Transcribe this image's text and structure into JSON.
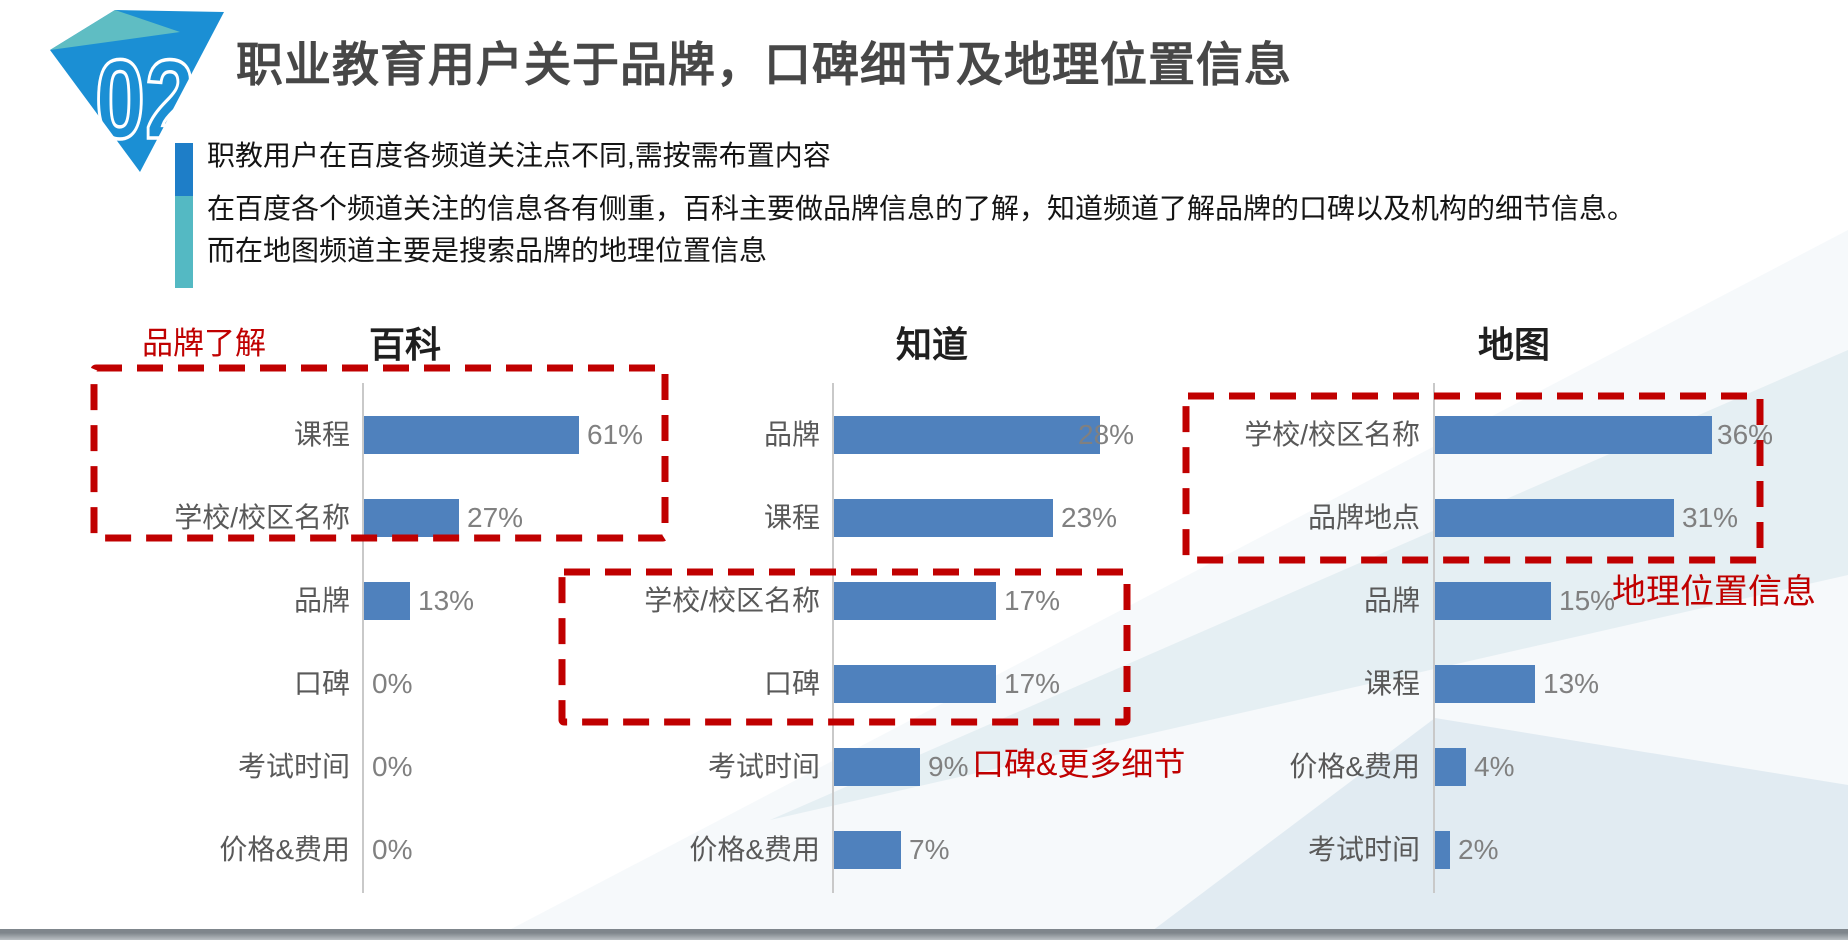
{
  "slide": {
    "badge_number": "02",
    "title": "职业教育用户关于品牌，口碑细节及地理位置信息",
    "subtitle1": "职教用户在百度各频道关注点不同,需按需布置内容",
    "subtitle2_line1": "在百度各个频道关注的信息各有侧重，百科主要做品牌信息的了解，知道频道了解品牌的口碑以及机构的细节信息。",
    "subtitle2_line2": "而在地图频道主要是搜索品牌的地理位置信息"
  },
  "annotations": {
    "brand_understanding": "品牌了解",
    "word_of_mouth_details": "口碑&更多细节",
    "geo_location_info": "地理位置信息"
  },
  "colors": {
    "bar_blue": "#4f81bd",
    "annotation_red": "#c00000",
    "badge_blue": "#1b8fd4",
    "badge_teal": "#5fbdc3",
    "accent_bar_blue": "#1e7ec8",
    "accent_bar_teal": "#54b9c3",
    "axis_gray": "#c9c9c9",
    "category_text": "#595959",
    "value_text": "#808080",
    "background_tint": "#e3edf2"
  },
  "chart_data": [
    {
      "type": "bar",
      "orientation": "horizontal",
      "title": "百科",
      "categories": [
        "课程",
        "学校/校区名称",
        "品牌",
        "口碑",
        "考试时间",
        "价格&费用"
      ],
      "values": [
        61,
        27,
        13,
        0,
        0,
        0
      ],
      "unit": "%",
      "xlim": [
        0,
        70
      ],
      "grid": false,
      "value_labels": "outside-end"
    },
    {
      "type": "bar",
      "orientation": "horizontal",
      "title": "知道",
      "categories": [
        "品牌",
        "课程",
        "学校/校区名称",
        "口碑",
        "考试时间",
        "价格&费用"
      ],
      "values": [
        28,
        23,
        17,
        17,
        9,
        7
      ],
      "unit": "%",
      "xlim": [
        0,
        30
      ],
      "grid": false,
      "value_labels": "outside-end"
    },
    {
      "type": "bar",
      "orientation": "horizontal",
      "title": "地图",
      "categories": [
        "学校/校区名称",
        "品牌地点",
        "品牌",
        "课程",
        "价格&费用",
        "考试时间"
      ],
      "values": [
        36,
        31,
        15,
        13,
        4,
        2
      ],
      "unit": "%",
      "xlim": [
        0,
        40
      ],
      "grid": false,
      "value_labels": "outside-end"
    }
  ]
}
